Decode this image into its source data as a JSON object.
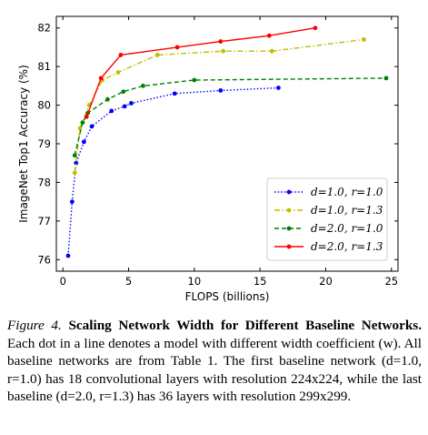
{
  "chart_data": {
    "type": "line",
    "xlabel": "FLOPS (billions)",
    "ylabel": "ImageNet Top1 Accuracy (%)",
    "xlim": [
      -0.5,
      25.5
    ],
    "ylim": [
      75.7,
      82.3
    ],
    "xticks": [
      0,
      5,
      10,
      15,
      20,
      25
    ],
    "yticks": [
      76,
      77,
      78,
      79,
      80,
      81,
      82
    ],
    "grid": false,
    "legend_position": "lower-right",
    "series": [
      {
        "name": "d=1.0, r=1.0",
        "color": "#0000ff",
        "linestyle": "dotted",
        "x": [
          0.4,
          0.7,
          1.0,
          1.6,
          2.2,
          3.7,
          4.7,
          5.2,
          8.5,
          12.0,
          16.4
        ],
        "y": [
          76.1,
          77.5,
          78.5,
          79.05,
          79.45,
          79.85,
          79.97,
          80.05,
          80.3,
          80.38,
          80.45
        ]
      },
      {
        "name": "d=1.0, r=1.3",
        "color": "#bfbf00",
        "linestyle": "dashdot",
        "x": [
          0.9,
          1.3,
          2.0,
          3.0,
          4.2,
          7.2,
          12.2,
          15.9,
          22.9
        ],
        "y": [
          78.25,
          79.4,
          80.0,
          80.65,
          80.85,
          81.3,
          81.4,
          81.4,
          81.7
        ]
      },
      {
        "name": "d=2.0, r=1.0",
        "color": "#007f00",
        "linestyle": "dashed",
        "x": [
          0.9,
          1.5,
          1.9,
          3.4,
          4.6,
          6.1,
          10.0,
          24.6
        ],
        "y": [
          78.7,
          79.55,
          79.8,
          80.15,
          80.35,
          80.5,
          80.65,
          80.7
        ]
      },
      {
        "name": "d=2.0, r=1.3",
        "color": "#ff0000",
        "linestyle": "solid",
        "x": [
          1.8,
          2.9,
          4.4,
          8.7,
          12.0,
          15.7,
          19.2
        ],
        "y": [
          79.7,
          80.7,
          81.3,
          81.5,
          81.65,
          81.8,
          82.0
        ]
      }
    ]
  },
  "caption": {
    "label": "Figure 4.",
    "title": "Scaling Network Width for Different Baseline Networks.",
    "body": "Each dot in a line denotes a model with different width coefficient (w). All baseline networks are from Table 1. The first baseline network (d=1.0, r=1.0) has 18 convolutional layers with resolution 224x224, while the last baseline (d=2.0, r=1.3) has 36 layers with resolution 299x299."
  }
}
